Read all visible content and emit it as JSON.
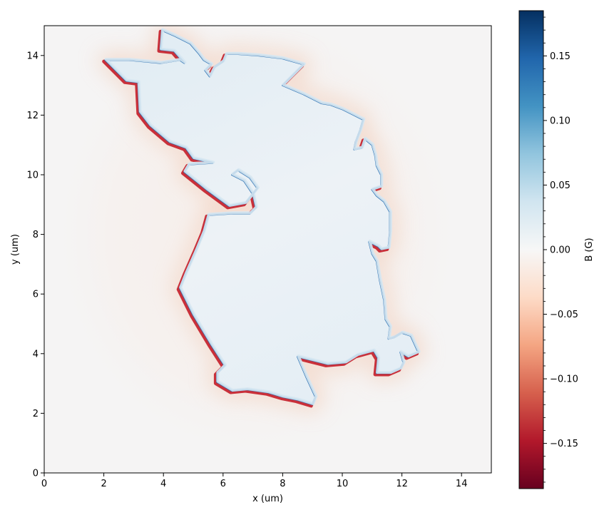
{
  "chart_data": {
    "type": "heatmap",
    "title": "",
    "xlabel": "x (um)",
    "ylabel": "y (um)",
    "xlim": [
      0,
      15
    ],
    "ylim": [
      0,
      15
    ],
    "xticks": [
      0,
      2,
      4,
      6,
      8,
      10,
      12,
      14
    ],
    "yticks": [
      0,
      2,
      4,
      6,
      8,
      10,
      12,
      14
    ],
    "xtick_labels": [
      "0",
      "2",
      "4",
      "6",
      "8",
      "10",
      "12",
      "14"
    ],
    "ytick_labels": [
      "0",
      "2",
      "4",
      "6",
      "8",
      "10",
      "12",
      "14"
    ],
    "colorbar": {
      "label": "B (G)",
      "colormap": "RdBu",
      "vmin": -0.185,
      "vmax": 0.185,
      "ticks": [
        -0.15,
        -0.1,
        -0.05,
        0.0,
        0.05,
        0.1,
        0.15
      ],
      "tick_labels": [
        "−0.15",
        "−0.10",
        "−0.05",
        "0.00",
        "0.05",
        "0.10",
        "0.15"
      ],
      "colors": [
        "#67001f",
        "#b2182b",
        "#d6604d",
        "#f4a582",
        "#fddbc7",
        "#f7f7f7",
        "#d1e5f0",
        "#92c5de",
        "#4393c3",
        "#2166ac",
        "#053061"
      ]
    },
    "background_value": -0.005,
    "interior_value": 0.01,
    "outline": [
      [
        3.95,
        14.85
      ],
      [
        4.4,
        14.65
      ],
      [
        4.9,
        14.4
      ],
      [
        5.2,
        14.05
      ],
      [
        5.35,
        13.85
      ],
      [
        5.6,
        13.7
      ],
      [
        5.4,
        13.5
      ],
      [
        5.55,
        13.3
      ],
      [
        5.7,
        13.6
      ],
      [
        6.0,
        13.8
      ],
      [
        6.1,
        14.05
      ],
      [
        6.5,
        14.05
      ],
      [
        7.2,
        14.0
      ],
      [
        8.0,
        13.9
      ],
      [
        8.7,
        13.7
      ],
      [
        8.4,
        13.4
      ],
      [
        8.0,
        13.0
      ],
      [
        8.7,
        12.7
      ],
      [
        9.3,
        12.4
      ],
      [
        9.6,
        12.35
      ],
      [
        10.0,
        12.2
      ],
      [
        10.4,
        12.0
      ],
      [
        10.7,
        11.85
      ],
      [
        10.6,
        11.5
      ],
      [
        10.45,
        11.1
      ],
      [
        10.4,
        10.85
      ],
      [
        10.65,
        10.9
      ],
      [
        10.75,
        11.2
      ],
      [
        11.0,
        11.0
      ],
      [
        11.1,
        10.65
      ],
      [
        11.15,
        10.3
      ],
      [
        11.3,
        10.0
      ],
      [
        11.3,
        9.6
      ],
      [
        11.0,
        9.5
      ],
      [
        11.15,
        9.3
      ],
      [
        11.4,
        9.1
      ],
      [
        11.6,
        8.75
      ],
      [
        11.6,
        8.1
      ],
      [
        11.55,
        7.55
      ],
      [
        11.3,
        7.5
      ],
      [
        11.2,
        7.6
      ],
      [
        10.9,
        7.75
      ],
      [
        11.0,
        7.35
      ],
      [
        11.15,
        7.1
      ],
      [
        11.25,
        6.5
      ],
      [
        11.4,
        5.8
      ],
      [
        11.45,
        5.15
      ],
      [
        11.6,
        4.9
      ],
      [
        11.55,
        4.5
      ],
      [
        11.75,
        4.55
      ],
      [
        12.0,
        4.7
      ],
      [
        12.3,
        4.6
      ],
      [
        12.55,
        4.05
      ],
      [
        12.2,
        3.9
      ],
      [
        11.95,
        4.05
      ],
      [
        12.05,
        3.7
      ],
      [
        11.95,
        3.5
      ],
      [
        11.6,
        3.35
      ],
      [
        11.15,
        3.35
      ],
      [
        11.2,
        3.85
      ],
      [
        11.05,
        4.1
      ],
      [
        10.5,
        3.95
      ],
      [
        10.1,
        3.7
      ],
      [
        9.5,
        3.65
      ],
      [
        8.5,
        3.9
      ],
      [
        8.8,
        3.2
      ],
      [
        9.1,
        2.55
      ],
      [
        9.0,
        2.3
      ],
      [
        8.5,
        2.45
      ],
      [
        8.0,
        2.55
      ],
      [
        7.5,
        2.7
      ],
      [
        6.8,
        2.8
      ],
      [
        6.3,
        2.75
      ],
      [
        5.8,
        3.05
      ],
      [
        5.8,
        3.35
      ],
      [
        6.05,
        3.6
      ],
      [
        5.6,
        4.3
      ],
      [
        5.0,
        5.3
      ],
      [
        4.55,
        6.2
      ],
      [
        4.75,
        6.7
      ],
      [
        5.1,
        7.5
      ],
      [
        5.35,
        8.1
      ],
      [
        5.5,
        8.65
      ],
      [
        6.3,
        8.7
      ],
      [
        6.9,
        8.7
      ],
      [
        7.1,
        8.9
      ],
      [
        7.0,
        9.35
      ],
      [
        6.7,
        9.8
      ],
      [
        6.3,
        10.0
      ],
      [
        6.5,
        10.15
      ],
      [
        6.9,
        9.9
      ],
      [
        7.15,
        9.55
      ],
      [
        6.75,
        9.05
      ],
      [
        6.2,
        8.95
      ],
      [
        5.45,
        9.5
      ],
      [
        4.7,
        10.1
      ],
      [
        4.85,
        10.35
      ],
      [
        5.65,
        10.4
      ],
      [
        5.0,
        10.55
      ],
      [
        4.75,
        10.9
      ],
      [
        4.2,
        11.1
      ],
      [
        3.55,
        11.65
      ],
      [
        3.2,
        12.1
      ],
      [
        3.15,
        13.1
      ],
      [
        2.75,
        13.15
      ],
      [
        2.05,
        13.85
      ],
      [
        2.85,
        13.85
      ],
      [
        3.9,
        13.75
      ],
      [
        4.55,
        13.85
      ],
      [
        4.7,
        13.75
      ],
      [
        4.35,
        14.15
      ],
      [
        3.9,
        14.2
      ]
    ]
  }
}
